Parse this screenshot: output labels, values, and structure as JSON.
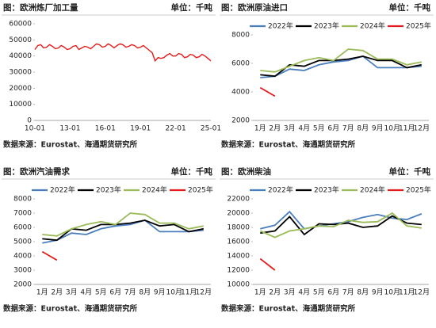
{
  "chart_data": [
    {
      "type": "line",
      "title": "图：欧洲炼厂加工量",
      "unit": "单位：千吨",
      "source": "数据来源：Eurostat、海通期货研究所",
      "categories": [
        "10-01",
        null,
        null,
        null,
        null,
        null,
        null,
        null,
        null,
        null,
        null,
        null,
        "13-01",
        null,
        null,
        null,
        null,
        null,
        null,
        null,
        null,
        null,
        null,
        null,
        "16-01",
        null,
        null,
        null,
        null,
        null,
        null,
        null,
        null,
        null,
        null,
        null,
        "19-01",
        null,
        null,
        null,
        null,
        null,
        null,
        null,
        null,
        null,
        null,
        null,
        "22-01",
        null,
        null,
        null,
        null,
        null,
        null,
        null,
        null,
        null,
        null,
        null,
        "25-01"
      ],
      "series": [
        {
          "color": "#e31b1b",
          "values": [
            44000,
            46500,
            47000,
            45000,
            45500,
            47000,
            46000,
            44500,
            45000,
            46500,
            45500,
            44000,
            44500,
            46000,
            46500,
            44000,
            45000,
            46000,
            45500,
            44500,
            46000,
            47500,
            47000,
            45500,
            46000,
            47500,
            46500,
            45000,
            46500,
            47500,
            47000,
            45500,
            46000,
            47000,
            46500,
            45000,
            45500,
            46500,
            45000,
            43500,
            42000,
            37000,
            39000,
            38500,
            39000,
            40500,
            41500,
            40000,
            40000,
            41500,
            41000,
            39000,
            39500,
            41000,
            40500,
            39000,
            39500,
            41000,
            40000,
            38500,
            37000
          ]
        }
      ],
      "ylim": [
        0,
        60000
      ],
      "yticks": [
        0,
        10000,
        20000,
        30000,
        40000,
        50000,
        60000
      ]
    },
    {
      "type": "line",
      "title": "图：欧洲原油进口",
      "unit": "单位：千吨",
      "source": "数据来源：Eurostat、海通期货研究所",
      "categories": [
        "1月",
        "2月",
        "3月",
        "4月",
        "5月",
        "6月",
        "7月",
        "8月",
        "9月",
        "10月",
        "11月",
        "12月"
      ],
      "series": [
        {
          "name": "2022年",
          "color": "#4a7ebb",
          "values": [
            5000,
            5100,
            5600,
            5500,
            5900,
            6100,
            6200,
            6500,
            5700,
            5700,
            5700,
            5800
          ]
        },
        {
          "name": "2023年",
          "color": "#000000",
          "values": [
            5200,
            5100,
            5900,
            5800,
            6200,
            6200,
            6300,
            6500,
            6200,
            6200,
            5700,
            5900
          ]
        },
        {
          "name": "2024年",
          "color": "#9bbb59",
          "values": [
            5500,
            5400,
            5800,
            6200,
            6400,
            6200,
            7000,
            6900,
            6300,
            6300,
            5900,
            6100
          ]
        },
        {
          "name": "2025年",
          "color": "#e31b1b",
          "values": [
            4300,
            3700,
            null,
            null,
            null,
            null,
            null,
            null,
            null,
            null,
            null,
            null
          ]
        }
      ],
      "ylim": [
        2000,
        8000
      ],
      "yticks": [
        2000,
        4000,
        6000,
        8000
      ]
    },
    {
      "type": "line",
      "title": "图：欧洲汽油需求",
      "unit": "单位：千吨",
      "source": "数据来源：Eurostat、海通期货研究所",
      "categories": [
        "1月",
        "2月",
        "3月",
        "4月",
        "5月",
        "6月",
        "7月",
        "8月",
        "9月",
        "10月",
        "11月",
        "12月"
      ],
      "series": [
        {
          "name": "2022年",
          "color": "#4a7ebb",
          "values": [
            4900,
            5100,
            5600,
            5500,
            5900,
            6100,
            6200,
            6500,
            5700,
            5700,
            5700,
            5800
          ]
        },
        {
          "name": "2023年",
          "color": "#000000",
          "values": [
            5200,
            5100,
            5900,
            5800,
            6200,
            6200,
            6300,
            6500,
            6100,
            6200,
            5700,
            5900
          ]
        },
        {
          "name": "2024年",
          "color": "#9bbb59",
          "values": [
            5500,
            5400,
            5900,
            6200,
            6400,
            6200,
            7000,
            6900,
            6300,
            6300,
            5900,
            6100
          ]
        },
        {
          "name": "2025年",
          "color": "#e31b1b",
          "values": [
            4300,
            3700,
            null,
            null,
            null,
            null,
            null,
            null,
            null,
            null,
            null,
            null
          ]
        }
      ],
      "ylim": [
        2000,
        8000
      ],
      "yticks": [
        2000,
        3000,
        4000,
        5000,
        6000,
        7000,
        8000
      ]
    },
    {
      "type": "line",
      "title": "图：欧洲柴油",
      "unit": "单位：千吨",
      "source": "数据来源：Eurostat、海通期货研究所",
      "categories": [
        "1月",
        "2月",
        "3月",
        "4月",
        "5月",
        "6月",
        "7月",
        "8月",
        "9月",
        "10月",
        "11月",
        "12月"
      ],
      "series": [
        {
          "name": "2022年",
          "color": "#4a7ebb",
          "values": [
            17800,
            18300,
            20200,
            17800,
            18200,
            18500,
            18800,
            19400,
            19800,
            19300,
            19100,
            19900
          ]
        },
        {
          "name": "2023年",
          "color": "#000000",
          "values": [
            17200,
            17500,
            19500,
            17000,
            18500,
            18400,
            18600,
            18000,
            18200,
            19600,
            18600,
            18400
          ]
        },
        {
          "name": "2024年",
          "color": "#9bbb59",
          "values": [
            17500,
            16600,
            17500,
            17800,
            18200,
            18100,
            19000,
            18700,
            18800,
            20000,
            18200,
            17900
          ]
        },
        {
          "name": "2025年",
          "color": "#e31b1b",
          "values": [
            13600,
            12000,
            null,
            null,
            null,
            null,
            null,
            null,
            null,
            null,
            null,
            null
          ]
        }
      ],
      "ylim": [
        10000,
        22000
      ],
      "yticks": [
        10000,
        12000,
        14000,
        16000,
        18000,
        20000,
        22000
      ]
    }
  ]
}
